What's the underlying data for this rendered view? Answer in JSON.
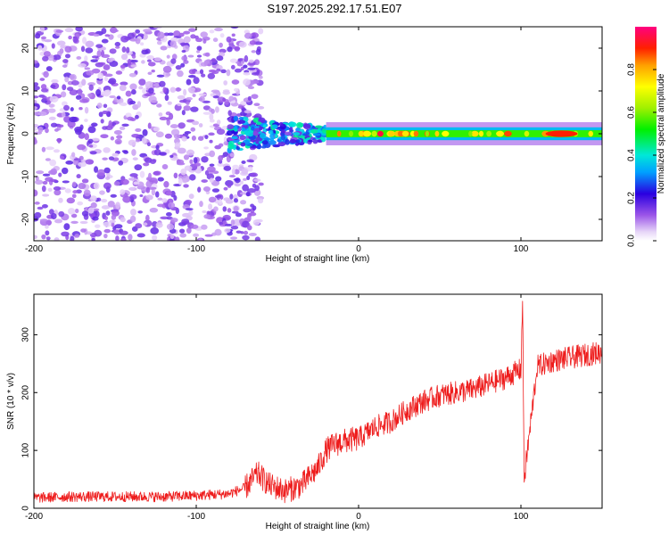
{
  "figure_title": "S197.2025.292.17.51.E07",
  "colors": {
    "snr_line": "#ee1c1c",
    "axes": "#000000",
    "background": "#ffffff"
  },
  "chart_data": [
    {
      "type": "heatmap",
      "title": "S197.2025.292.17.51.E07",
      "xlabel": "Height of straight line (km)",
      "ylabel": "Frequency (Hz)",
      "xlim": [
        -200,
        150
      ],
      "ylim": [
        -25,
        25
      ],
      "x_ticks": [
        -200,
        -100,
        0,
        100
      ],
      "y_ticks": [
        -20,
        -10,
        0,
        10,
        20
      ],
      "colorbar": {
        "label": "Normalized spectral amplitude",
        "range": [
          0,
          1
        ],
        "ticks": [
          0.0,
          0.2,
          0.4,
          0.6,
          0.8
        ],
        "colormap": "rainbow (white-violet-blue-cyan-green-yellow-red-magenta)"
      },
      "features": [
        {
          "description": "scattered noise speckle",
          "x_range": [
            -200,
            -60
          ],
          "freq_range": [
            -25,
            25
          ],
          "amplitude": 0.12
        },
        {
          "description": "transition region",
          "x_range": [
            -80,
            -20
          ],
          "freq_range": [
            -8,
            8
          ],
          "amplitude": 0.25
        },
        {
          "description": "narrow band near 0 Hz",
          "x_range": [
            -20,
            150
          ],
          "freq_center": 0,
          "freq_halfwidth": 1.5,
          "amplitude": 0.85
        }
      ]
    },
    {
      "type": "line",
      "xlabel": "Height of straight line (km)",
      "ylabel": "SNR (10 * v/v)",
      "xlim": [
        -200,
        150
      ],
      "ylim": [
        0,
        370
      ],
      "x_ticks": [
        -200,
        -100,
        0,
        100
      ],
      "y_ticks": [
        0,
        100,
        200,
        300
      ],
      "series": [
        {
          "name": "SNR",
          "x": [
            -200,
            -180,
            -160,
            -140,
            -120,
            -100,
            -80,
            -70,
            -62,
            -55,
            -45,
            -35,
            -25,
            -20,
            -15,
            -10,
            -5,
            0,
            5,
            10,
            20,
            30,
            40,
            50,
            60,
            70,
            80,
            90,
            100,
            101,
            102,
            110,
            120,
            130,
            140,
            150
          ],
          "values": [
            18,
            20,
            20,
            20,
            20,
            22,
            25,
            35,
            60,
            40,
            30,
            40,
            70,
            100,
            110,
            115,
            118,
            120,
            130,
            140,
            150,
            170,
            185,
            195,
            200,
            205,
            215,
            225,
            240,
            360,
            50,
            245,
            255,
            260,
            265,
            270
          ]
        }
      ]
    }
  ]
}
